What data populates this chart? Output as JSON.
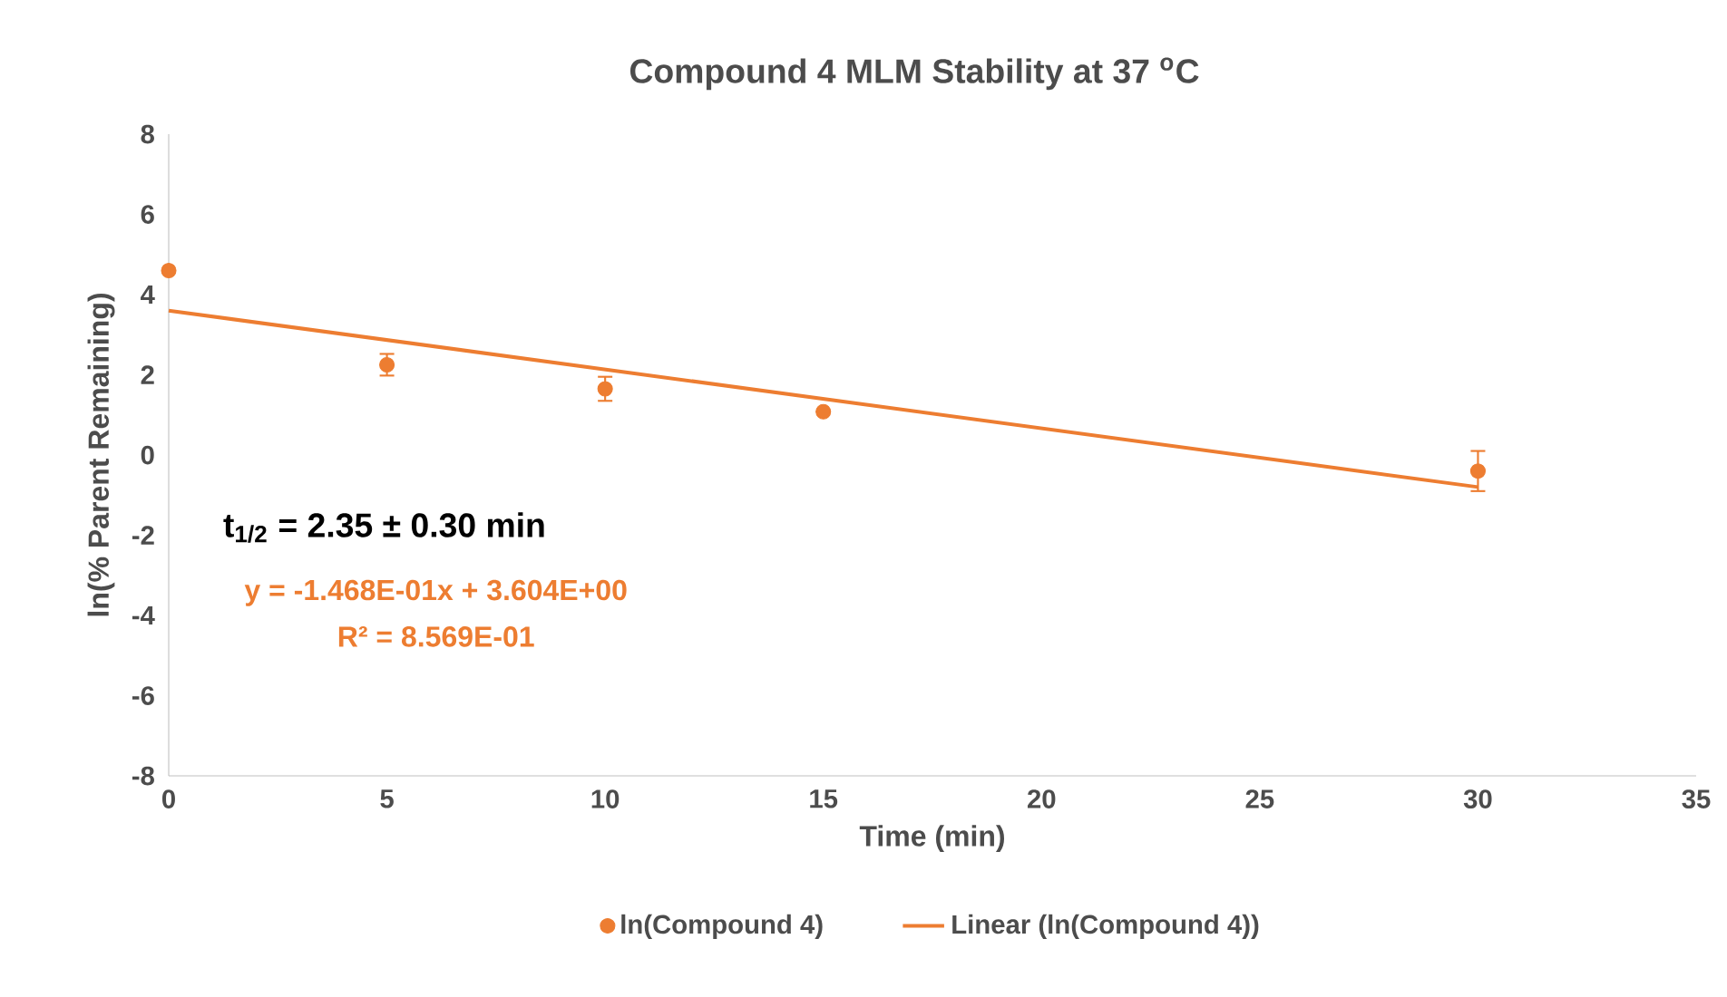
{
  "chart_data": {
    "type": "scatter",
    "title": "Compound 4 MLM Stability at 37 $^{o}$C",
    "xlabel": "Time (min)",
    "ylabel": "ln(% Parent Remaining)",
    "xlim": [
      0,
      35
    ],
    "xticks": [
      0,
      5,
      10,
      15,
      20,
      25,
      30,
      35
    ],
    "ylim": [
      -8,
      8
    ],
    "yticks": [
      -8,
      -6,
      -4,
      -2,
      0,
      2,
      4,
      6,
      8
    ],
    "legend": "bottom",
    "series": [
      {
        "name": "ln(Compound 4)",
        "marker": "circle",
        "color": "#ed7d31",
        "x": [
          0,
          5,
          10,
          15,
          30
        ],
        "values": [
          4.6,
          2.25,
          1.65,
          1.08,
          -0.4
        ],
        "errors": [
          null,
          0.27,
          0.3,
          null,
          0.5
        ]
      },
      {
        "name": "Linear (ln(Compound 4))",
        "type": "line",
        "color": "#ed7d31",
        "marker": "none",
        "line_style": "solid",
        "x": [
          0,
          30
        ],
        "values": [
          3.6,
          -0.8
        ]
      }
    ],
    "annotations": [
      "t$_{1/2}$ = 2.35 ± 0.30 min",
      "y = -1.468E-01x + 3.604E+00",
      "R² = 8.569E-01"
    ]
  }
}
